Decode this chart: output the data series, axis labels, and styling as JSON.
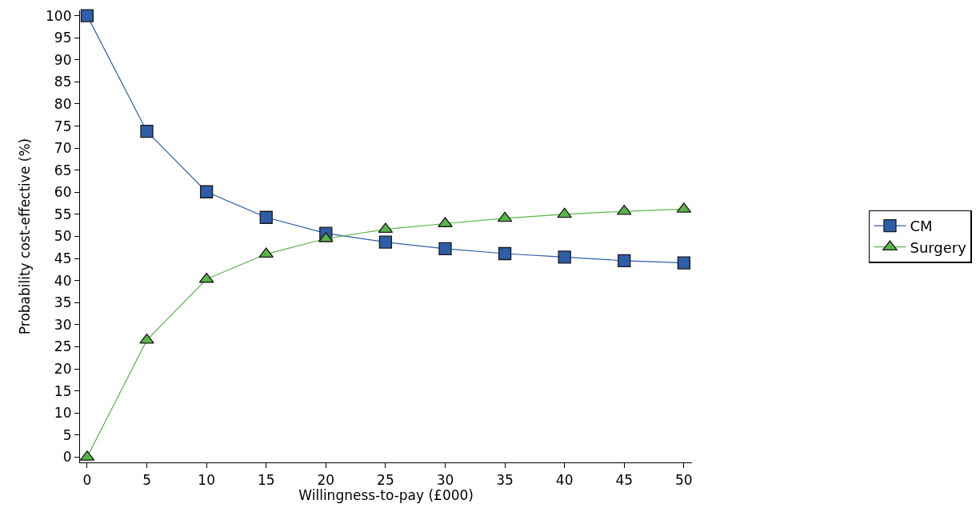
{
  "chart_data": {
    "type": "line",
    "xlabel": "Willingness-to-pay (£000)",
    "ylabel": "Probability cost-effective (%)",
    "x": [
      0,
      5,
      10,
      15,
      20,
      25,
      30,
      35,
      40,
      45,
      50
    ],
    "series": [
      {
        "name": "CM",
        "color": "#2e5ea8",
        "marker": "square",
        "values": [
          100,
          73.8,
          60.1,
          54.3,
          50.7,
          48.7,
          47.2,
          46.1,
          45.3,
          44.5,
          44.0
        ]
      },
      {
        "name": "Surgery",
        "color": "#5ab54a",
        "marker": "triangle",
        "values": [
          0,
          26.5,
          40.3,
          46,
          49.5,
          51.6,
          52.9,
          54.1,
          55,
          55.7,
          56.2
        ]
      }
    ],
    "xlim": [
      -0.6,
      50.7
    ],
    "xticks": [
      0,
      5,
      10,
      15,
      20,
      25,
      30,
      35,
      40,
      45,
      50
    ],
    "ylim": [
      -1.2,
      101.2
    ],
    "yticks": [
      0,
      5,
      10,
      15,
      20,
      25,
      30,
      35,
      40,
      45,
      50,
      55,
      60,
      65,
      70,
      75,
      80,
      85,
      90,
      95,
      100
    ],
    "legend": "right",
    "line_style": "solid"
  }
}
